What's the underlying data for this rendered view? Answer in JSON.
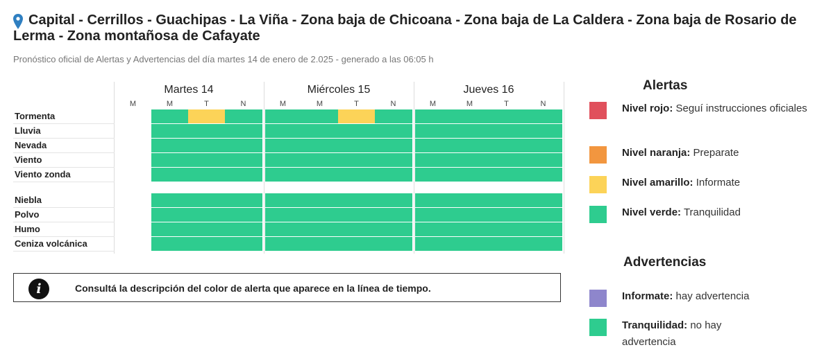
{
  "header": {
    "title_line1": "Capital - Cerrillos - Guachipas - La Viña - Zona baja de Chicoana - Zona baja de La Caldera - Zona baja de Rosario de",
    "title_line2": "Lerma - Zona montañosa de Cafayate",
    "subtitle": "Pronóstico oficial de Alertas y Advertencias del día martes 14 de enero de 2.025 - generado a las 06:05 h",
    "icon": "location-pin-icon"
  },
  "timeline": {
    "days": [
      {
        "label": "Martes 14",
        "slots": [
          "M",
          "M",
          "T",
          "N"
        ]
      },
      {
        "label": "Miércoles 15",
        "slots": [
          "M",
          "M",
          "T",
          "N"
        ]
      },
      {
        "label": "Jueves 16",
        "slots": [
          "M",
          "M",
          "T",
          "N"
        ]
      }
    ],
    "rows": [
      {
        "label": "Tormenta",
        "levels": [
          "none",
          "green",
          "yellow",
          "green",
          "green",
          "green",
          "yellow",
          "green",
          "green",
          "green",
          "green",
          "green"
        ]
      },
      {
        "label": "Lluvia",
        "levels": [
          "none",
          "green",
          "green",
          "green",
          "green",
          "green",
          "green",
          "green",
          "green",
          "green",
          "green",
          "green"
        ]
      },
      {
        "label": "Nevada",
        "levels": [
          "none",
          "green",
          "green",
          "green",
          "green",
          "green",
          "green",
          "green",
          "green",
          "green",
          "green",
          "green"
        ]
      },
      {
        "label": "Viento",
        "levels": [
          "none",
          "green",
          "green",
          "green",
          "green",
          "green",
          "green",
          "green",
          "green",
          "green",
          "green",
          "green"
        ]
      },
      {
        "label": "Viento zonda",
        "levels": [
          "none",
          "green",
          "green",
          "green",
          "green",
          "green",
          "green",
          "green",
          "green",
          "green",
          "green",
          "green"
        ]
      },
      {
        "label": "Niebla",
        "levels": [
          "none",
          "green",
          "green",
          "green",
          "green",
          "green",
          "green",
          "green",
          "green",
          "green",
          "green",
          "green"
        ]
      },
      {
        "label": "Polvo",
        "levels": [
          "none",
          "green",
          "green",
          "green",
          "green",
          "green",
          "green",
          "green",
          "green",
          "green",
          "green",
          "green"
        ]
      },
      {
        "label": "Humo",
        "levels": [
          "none",
          "green",
          "green",
          "green",
          "green",
          "green",
          "green",
          "green",
          "green",
          "green",
          "green",
          "green"
        ]
      },
      {
        "label": "Ceniza volcánica",
        "levels": [
          "none",
          "green",
          "green",
          "green",
          "green",
          "green",
          "green",
          "green",
          "green",
          "green",
          "green",
          "green"
        ]
      }
    ]
  },
  "info": {
    "icon": "info-icon",
    "icon_glyph": "i",
    "text": "Consultá la descripción del color de alerta que aparece en la línea de tiempo."
  },
  "legend": {
    "alerts_title": "Alertas",
    "alerts": [
      {
        "name": "Nivel rojo:",
        "desc": " Seguí instrucciones oficiales",
        "color": "#e0505c"
      },
      {
        "name": "Nivel naranja:",
        "desc": " Preparate",
        "color": "#f2963f"
      },
      {
        "name": "Nivel amarillo:",
        "desc": " Informate",
        "color": "#fcd358"
      },
      {
        "name": "Nivel verde:",
        "desc": " Tranquilidad",
        "color": "#2ecc8f"
      }
    ],
    "warnings_title": "Advertencias",
    "warnings": [
      {
        "name": "Informate:",
        "desc": " hay advertencia",
        "color": "#8e86cc"
      },
      {
        "name": "Tranquilidad:",
        "desc": " no hay advertencia",
        "color": "#2ecc8f"
      }
    ]
  }
}
